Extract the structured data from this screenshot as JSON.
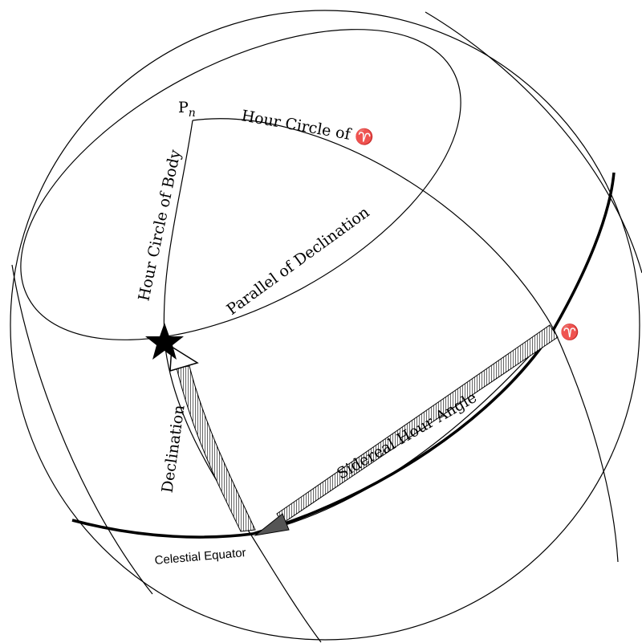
{
  "labels": {
    "pole": {
      "letter": "P",
      "subscript": "n"
    },
    "hour_circle_aries": "Hour Circle of ♈",
    "hour_circle_body": "Hour Circle of Body",
    "parallel": "Parallel of Declination",
    "aries": "♈",
    "sha": "Sidereal Hour Angle",
    "declination": "Declination",
    "equator": "Celestial Equator"
  }
}
